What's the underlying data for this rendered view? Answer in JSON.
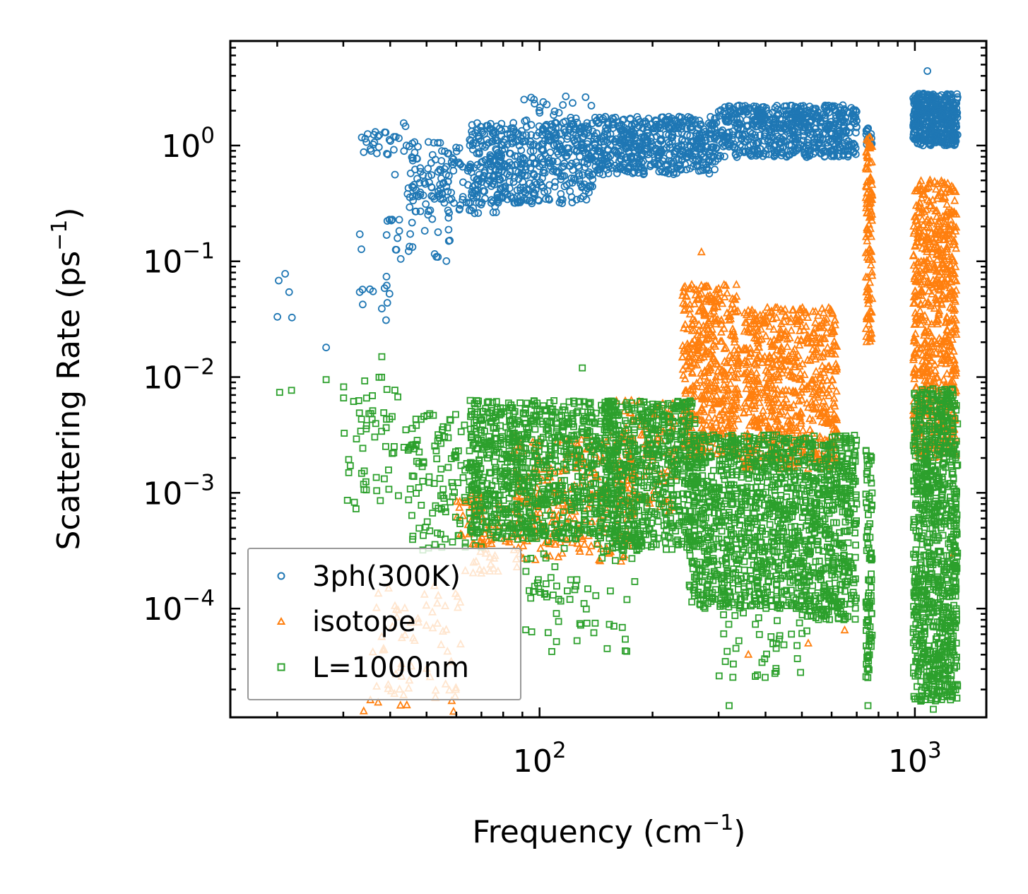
{
  "chart_data": {
    "type": "scatter",
    "xscale": "log",
    "yscale": "log",
    "xlabel": "Frequency",
    "xlabel_unit_base": "cm",
    "xlabel_unit_exp": "−1",
    "ylabel": "Scattering Rate",
    "ylabel_unit_base": "ps",
    "ylabel_unit_exp": "−1",
    "xlim": [
      15,
      1550
    ],
    "ylim": [
      1.15e-05,
      8
    ],
    "x_ticks": [
      {
        "value": 100,
        "base": "10",
        "exp": "2"
      },
      {
        "value": 1000,
        "base": "10",
        "exp": "3"
      }
    ],
    "y_ticks": [
      {
        "value": 1,
        "base": "10",
        "exp": "0"
      },
      {
        "value": 0.1,
        "base": "10",
        "exp": "−1"
      },
      {
        "value": 0.01,
        "base": "10",
        "exp": "−2"
      },
      {
        "value": 0.001,
        "base": "10",
        "exp": "−3"
      },
      {
        "value": 0.0001,
        "base": "10",
        "exp": "−4"
      }
    ],
    "legend_position": "lower-left",
    "series": [
      {
        "name": "3ph(300K)",
        "marker": "circle",
        "color": "#1f77b4",
        "clusters": [
          {
            "x": [
              20,
              22
            ],
            "log_y": [
              -1.5,
              -1.1
            ],
            "n": 4
          },
          {
            "x": [
              31,
              40
            ],
            "log_y": [
              -1.4,
              -0.6
            ],
            "n": 14
          },
          {
            "x": [
              33,
              45
            ],
            "log_y": [
              -0.1,
              0.2
            ],
            "n": 30
          },
          {
            "x": [
              40,
              60
            ],
            "log_y": [
              -1.0,
              -0.2
            ],
            "n": 40
          },
          {
            "x": [
              45,
              80
            ],
            "log_y": [
              -0.6,
              0.05
            ],
            "n": 160
          },
          {
            "x": [
              65,
              140
            ],
            "log_y": [
              -0.5,
              0.2
            ],
            "n": 420
          },
          {
            "x": [
              90,
              140
            ],
            "log_y": [
              -0.2,
              0.45
            ],
            "n": 60
          },
          {
            "x": [
              140,
              300
            ],
            "log_y": [
              -0.25,
              0.25
            ],
            "n": 520
          },
          {
            "x": [
              300,
              700
            ],
            "log_y": [
              -0.1,
              0.35
            ],
            "n": 600
          },
          {
            "x": [
              740,
              770
            ],
            "log_y": [
              0.0,
              0.15
            ],
            "n": 20
          },
          {
            "x": [
              990,
              1300
            ],
            "log_y": [
              0.0,
              0.45
            ],
            "n": 420
          }
        ],
        "points": [
          {
            "x": 21,
            "y": 0.078
          },
          {
            "x": 27,
            "y": 0.018
          },
          {
            "x": 36,
            "y": 0.055
          },
          {
            "x": 38,
            "y": 0.039
          },
          {
            "x": 39,
            "y": 0.031
          },
          {
            "x": 95,
            "y": 2.6
          },
          {
            "x": 97,
            "y": 2.3
          },
          {
            "x": 1080,
            "y": 4.4
          }
        ]
      },
      {
        "name": "isotope",
        "marker": "triangle",
        "color": "#ff7f0e",
        "clusters": [
          {
            "x": [
              35,
              62
            ],
            "log_y": [
              -4.9,
              -3.8
            ],
            "n": 70
          },
          {
            "x": [
              60,
              90
            ],
            "log_y": [
              -3.7,
              -3.0
            ],
            "n": 90
          },
          {
            "x": [
              85,
              180
            ],
            "log_y": [
              -3.6,
              -2.5
            ],
            "n": 260
          },
          {
            "x": [
              160,
              230
            ],
            "log_y": [
              -3.2,
              -2.2
            ],
            "n": 120
          },
          {
            "x": [
              240,
              340
            ],
            "log_y": [
              -2.7,
              -1.2
            ],
            "n": 450
          },
          {
            "x": [
              350,
              460
            ],
            "log_y": [
              -2.8,
              -1.4
            ],
            "n": 330
          },
          {
            "x": [
              460,
              620
            ],
            "log_y": [
              -2.8,
              -1.4
            ],
            "n": 320
          },
          {
            "x": [
              740,
              770
            ],
            "log_y": [
              -1.7,
              0.1
            ],
            "n": 120
          },
          {
            "x": [
              990,
              1290
            ],
            "log_y": [
              -2.7,
              -0.3
            ],
            "n": 650
          }
        ],
        "points": [
          {
            "x": 34,
            "y": 1.3e-05
          },
          {
            "x": 270,
            "y": 0.12
          },
          {
            "x": 360,
            "y": 4e-05
          },
          {
            "x": 520,
            "y": 5e-05
          },
          {
            "x": 650,
            "y": 6.5e-05
          },
          {
            "x": 1270,
            "y": 0.0003
          }
        ]
      },
      {
        "name": "L=1000nm",
        "marker": "square",
        "color": "#2ca02c",
        "clusters": [
          {
            "x": [
              20,
              22
            ],
            "log_y": [
              -2.15,
              -2.1
            ],
            "n": 2
          },
          {
            "x": [
              30,
              50
            ],
            "log_y": [
              -3.2,
              -2.0
            ],
            "n": 70
          },
          {
            "x": [
              45,
              70
            ],
            "log_y": [
              -3.5,
              -2.3
            ],
            "n": 120
          },
          {
            "x": [
              65,
              160
            ],
            "log_y": [
              -3.4,
              -2.2
            ],
            "n": 900
          },
          {
            "x": [
              90,
              180
            ],
            "log_y": [
              -4.4,
              -3.3
            ],
            "n": 80
          },
          {
            "x": [
              150,
              260
            ],
            "log_y": [
              -3.5,
              -2.2
            ],
            "n": 600
          },
          {
            "x": [
              250,
              500
            ],
            "log_y": [
              -4.0,
              -2.5
            ],
            "n": 900
          },
          {
            "x": [
              300,
              520
            ],
            "log_y": [
              -4.6,
              -3.8
            ],
            "n": 50
          },
          {
            "x": [
              500,
              700
            ],
            "log_y": [
              -4.1,
              -2.5
            ],
            "n": 500
          },
          {
            "x": [
              740,
              770
            ],
            "log_y": [
              -4.6,
              -2.6
            ],
            "n": 90
          },
          {
            "x": [
              990,
              1300
            ],
            "log_y": [
              -4.8,
              -2.1
            ],
            "n": 900
          }
        ],
        "points": [
          {
            "x": 27,
            "y": 0.0095
          },
          {
            "x": 38,
            "y": 0.015
          },
          {
            "x": 130,
            "y": 0.012
          },
          {
            "x": 320,
            "y": 1.45e-05
          },
          {
            "x": 750,
            "y": 1.45e-05
          },
          {
            "x": 1120,
            "y": 1.35e-05
          }
        ]
      }
    ]
  }
}
